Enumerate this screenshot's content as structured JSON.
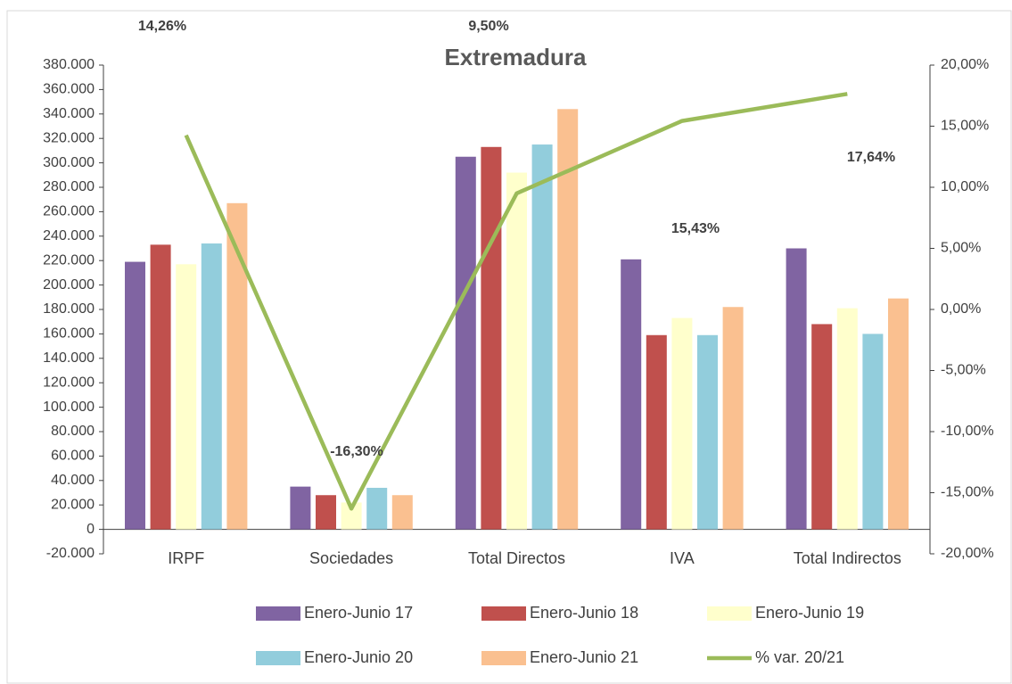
{
  "chart_data": {
    "type": "bar",
    "title": "Extremadura",
    "categories": [
      "IRPF",
      "Sociedades",
      "Total Directos",
      "IVA",
      "Total Indirectos"
    ],
    "series": [
      {
        "name": "Enero-Junio 17",
        "color": "#8064a2",
        "values": [
          219000,
          35000,
          305000,
          221000,
          230000
        ]
      },
      {
        "name": "Enero-Junio 18",
        "color": "#c0504d",
        "values": [
          233000,
          28000,
          313000,
          159000,
          168000
        ]
      },
      {
        "name": "Enero-Junio 19",
        "color": "#ffffcc",
        "values": [
          217000,
          22000,
          292000,
          173000,
          181000
        ]
      },
      {
        "name": "Enero-Junio 20",
        "color": "#92cddc",
        "values": [
          234000,
          34000,
          315000,
          159000,
          160000
        ]
      },
      {
        "name": "Enero-Junio 21",
        "color": "#fac090",
        "values": [
          267000,
          28000,
          344000,
          182000,
          189000
        ]
      },
      {
        "name": "% var. 20/21",
        "color": "#9bbb59",
        "type": "line",
        "axis": "y2",
        "values": [
          14.26,
          -16.3,
          9.5,
          15.43,
          17.64
        ],
        "value_labels": [
          "14,26%",
          "-16,30%",
          "9,50%",
          "15,43%",
          "17,64%"
        ]
      }
    ],
    "ylim": [
      -20000,
      380000
    ],
    "yticks": [
      {
        "value": -20000,
        "label": "-20.000"
      },
      0,
      {
        "value": 20000,
        "label": "20.000"
      },
      {
        "value": 40000,
        "label": "40.000"
      },
      {
        "value": 60000,
        "label": "60.000"
      },
      {
        "value": 80000,
        "label": "80.000"
      },
      {
        "value": 100000,
        "label": "100.000"
      },
      {
        "value": 120000,
        "label": "120.000"
      },
      {
        "value": 140000,
        "label": "140.000"
      },
      {
        "value": 160000,
        "label": "160.000"
      },
      {
        "value": 180000,
        "label": "180.000"
      },
      {
        "value": 200000,
        "label": "200.000"
      },
      {
        "value": 220000,
        "label": "220.000"
      },
      {
        "value": 240000,
        "label": "240.000"
      },
      {
        "value": 260000,
        "label": "260.000"
      },
      {
        "value": 280000,
        "label": "280.000"
      },
      {
        "value": 300000,
        "label": "300.000"
      },
      {
        "value": 320000,
        "label": "320.000"
      },
      {
        "value": 340000,
        "label": "340.000"
      },
      {
        "value": 360000,
        "label": "360.000"
      },
      {
        "value": 380000,
        "label": "380.000"
      }
    ],
    "y2lim": [
      -20,
      20
    ],
    "y2ticks": [
      {
        "value": -20,
        "label": "-20,00%"
      },
      {
        "value": -15,
        "label": "-15,00%"
      },
      {
        "value": -10,
        "label": "-10,00%"
      },
      {
        "value": -5,
        "label": "-5,00%"
      },
      {
        "value": 0,
        "label": "0,00%"
      },
      {
        "value": 5,
        "label": "5,00%"
      },
      {
        "value": 10,
        "label": "10,00%"
      },
      {
        "value": 15,
        "label": "15,00%"
      },
      {
        "value": 20,
        "label": "20,00%"
      }
    ],
    "grid": false
  }
}
